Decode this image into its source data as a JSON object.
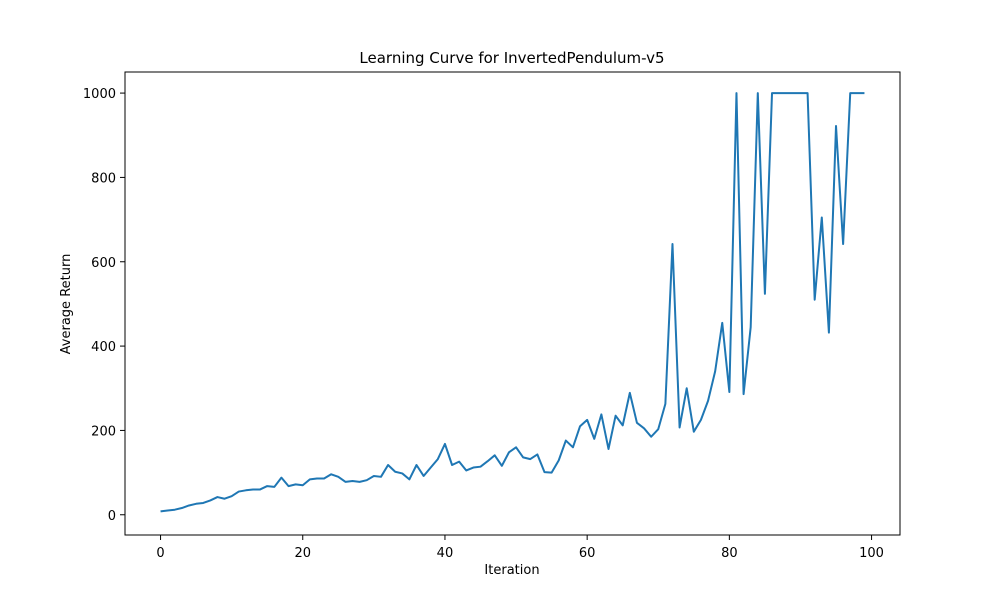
{
  "chart_data": {
    "type": "line",
    "title": "Learning Curve for InvertedPendulum-v5",
    "xlabel": "Iteration",
    "ylabel": "Average Return",
    "xlim": [
      -5,
      104
    ],
    "ylim": [
      -48,
      1050
    ],
    "xticks": [
      0,
      20,
      40,
      60,
      80,
      100
    ],
    "yticks": [
      0,
      200,
      400,
      600,
      800,
      1000
    ],
    "grid": false,
    "color": "#1f77b4",
    "series": [
      {
        "x": [
          0,
          1,
          2,
          3,
          4,
          5,
          6,
          7,
          8,
          9,
          10,
          11,
          12,
          13,
          14,
          15,
          16,
          17,
          18,
          19,
          20,
          21,
          22,
          23,
          24,
          25,
          26,
          27,
          28,
          29,
          30,
          31,
          32,
          33,
          34,
          35,
          36,
          37,
          38,
          39,
          40,
          41,
          42,
          43,
          44,
          45,
          46,
          47,
          48,
          49,
          50,
          51,
          52,
          53,
          54,
          55,
          56,
          57,
          58,
          59,
          60,
          61,
          62,
          63,
          64,
          65,
          66,
          67,
          68,
          69,
          70,
          71,
          72,
          73,
          74,
          75,
          76,
          77,
          78,
          79,
          80,
          81,
          82,
          83,
          84,
          85,
          86,
          87,
          88,
          89,
          90,
          91,
          92,
          93,
          94,
          95,
          96,
          97,
          98,
          99
        ],
        "y": [
          8,
          10,
          12,
          16,
          22,
          26,
          28,
          34,
          42,
          38,
          44,
          55,
          58,
          60,
          60,
          68,
          66,
          88,
          68,
          72,
          70,
          84,
          86,
          86,
          96,
          90,
          78,
          80,
          78,
          82,
          92,
          90,
          118,
          102,
          98,
          84,
          118,
          92,
          112,
          132,
          168,
          118,
          126,
          105,
          112,
          114,
          127,
          141,
          116,
          148,
          160,
          136,
          132,
          143,
          101,
          100,
          129,
          176,
          160,
          210,
          225,
          180,
          238,
          156,
          235,
          212,
          289,
          218,
          205,
          185,
          203,
          263,
          642,
          207,
          300,
          197,
          225,
          270,
          340,
          455,
          291,
          1000,
          286,
          445,
          1000,
          524,
          1000,
          1000,
          1000,
          1000,
          1000,
          1000,
          510,
          705,
          432,
          922,
          642,
          1000,
          1000,
          1000
        ]
      }
    ]
  }
}
